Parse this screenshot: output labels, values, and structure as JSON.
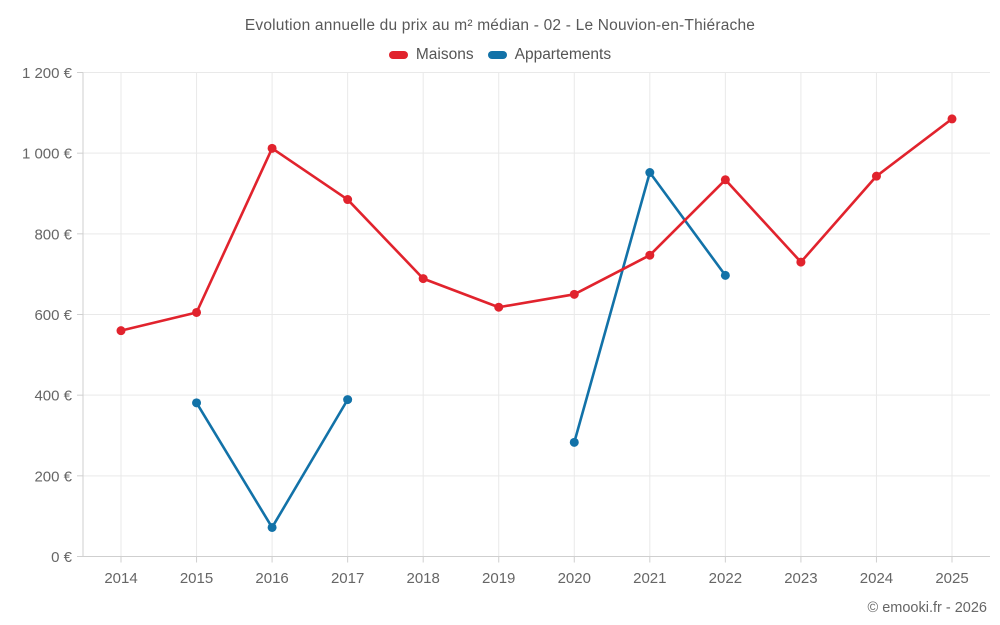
{
  "title": "Evolution annuelle du prix au m² médian - 02 - Le Nouvion-en-Thiérache",
  "footer": "© emooki.fr - 2026",
  "colors": {
    "maisons": "#e1232d",
    "appartements": "#1272a8",
    "grid": "#e9e9e9",
    "axis": "#cfcfcf",
    "tick_label": "#666666",
    "title_text": "#595959"
  },
  "chart_data": {
    "type": "line",
    "categories": [
      "2014",
      "2015",
      "2016",
      "2017",
      "2018",
      "2019",
      "2020",
      "2021",
      "2022",
      "2023",
      "2024",
      "2025"
    ],
    "series": [
      {
        "name": "Maisons",
        "color": "#e1232d",
        "values": [
          560,
          605,
          1012,
          885,
          689,
          618,
          650,
          747,
          934,
          730,
          943,
          1085
        ]
      },
      {
        "name": "Appartements",
        "color": "#1272a8",
        "values": [
          null,
          381,
          72,
          389,
          null,
          null,
          283,
          952,
          697,
          null,
          null,
          null
        ]
      }
    ],
    "xlabel": "",
    "ylabel": "",
    "ylim": [
      0,
      1200
    ],
    "ytick_step": 200,
    "ytick_suffix": " €",
    "grid": true,
    "legend_position": "top",
    "marker_radius": 4.5,
    "line_width": 2.6
  }
}
